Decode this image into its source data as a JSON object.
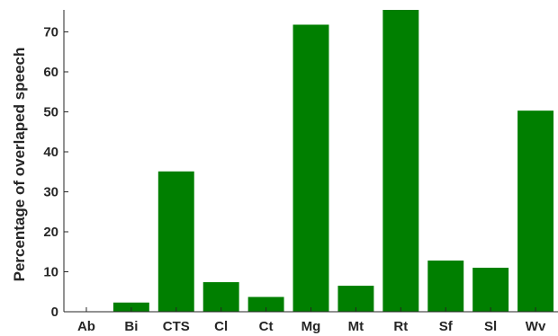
{
  "chart_data": {
    "type": "bar",
    "title": "",
    "xlabel": "",
    "ylabel": "Percentage of overlaped speech",
    "categories": [
      "Ab",
      "Bi",
      "CTS",
      "Cl",
      "Ct",
      "Mg",
      "Mt",
      "Rt",
      "Sf",
      "Sl",
      "Wv"
    ],
    "values": [
      0,
      2.3,
      35.1,
      7.4,
      3.7,
      71.8,
      6.5,
      75.5,
      12.8,
      11.0,
      50.3
    ],
    "ylim": [
      0,
      75.5
    ],
    "yticks": [
      "0",
      "10",
      "20",
      "30",
      "40",
      "50",
      "60",
      "70"
    ],
    "bar_color": "#007f00",
    "grid": false,
    "legend": "none"
  }
}
